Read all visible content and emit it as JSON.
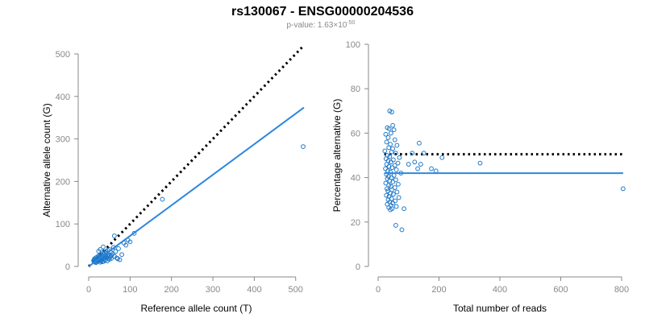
{
  "header": {
    "title": "rs130067 - ENSG00000204536",
    "pvalue_prefix": "p-value: 1.63×10",
    "pvalue_exponent": "-50"
  },
  "colors": {
    "points": "#1f78c8",
    "fit": "#2b87e0",
    "reference": "#000000"
  },
  "chart_data": [
    {
      "type": "scatter",
      "xlabel": "Reference allele count (T)",
      "ylabel": "Alternative allele count (G)",
      "xlim": [
        0,
        520
      ],
      "ylim": [
        0,
        500
      ],
      "xticks": [
        0,
        100,
        200,
        300,
        400,
        500
      ],
      "yticks": [
        0,
        100,
        200,
        300,
        400,
        500
      ],
      "reference_line": {
        "style": "dotted",
        "x": [
          0,
          520
        ],
        "y": [
          0,
          520
        ]
      },
      "fit_line": {
        "x": [
          0,
          520
        ],
        "y": [
          0,
          374
        ]
      },
      "points": [
        [
          12,
          14
        ],
        [
          13,
          12
        ],
        [
          14,
          18
        ],
        [
          15,
          16
        ],
        [
          16,
          11
        ],
        [
          17,
          20
        ],
        [
          18,
          15
        ],
        [
          19,
          13
        ],
        [
          20,
          22
        ],
        [
          21,
          17
        ],
        [
          22,
          19
        ],
        [
          23,
          14
        ],
        [
          24,
          25
        ],
        [
          25,
          21
        ],
        [
          26,
          16
        ],
        [
          27,
          24
        ],
        [
          28,
          18
        ],
        [
          29,
          28
        ],
        [
          30,
          23
        ],
        [
          31,
          15
        ],
        [
          32,
          26
        ],
        [
          33,
          19
        ],
        [
          34,
          30
        ],
        [
          35,
          22
        ],
        [
          36,
          17
        ],
        [
          37,
          29
        ],
        [
          38,
          24
        ],
        [
          39,
          33
        ],
        [
          40,
          20
        ],
        [
          41,
          27
        ],
        [
          42,
          35
        ],
        [
          43,
          21
        ],
        [
          44,
          31
        ],
        [
          45,
          25
        ],
        [
          46,
          38
        ],
        [
          47,
          18
        ],
        [
          48,
          28
        ],
        [
          50,
          40
        ],
        [
          52,
          22
        ],
        [
          54,
          33
        ],
        [
          55,
          26
        ],
        [
          58,
          30
        ],
        [
          60,
          45
        ],
        [
          62,
          24
        ],
        [
          65,
          35
        ],
        [
          68,
          20
        ],
        [
          70,
          18
        ],
        [
          72,
          42
        ],
        [
          75,
          16
        ],
        [
          80,
          28
        ],
        [
          85,
          55
        ],
        [
          90,
          50
        ],
        [
          95,
          62
        ],
        [
          100,
          58
        ],
        [
          110,
          78
        ],
        [
          15,
          10
        ],
        [
          18,
          9
        ],
        [
          22,
          12
        ],
        [
          25,
          14
        ],
        [
          28,
          10
        ],
        [
          30,
          13
        ],
        [
          33,
          11
        ],
        [
          36,
          12
        ],
        [
          40,
          15
        ],
        [
          45,
          13
        ],
        [
          50,
          17
        ],
        [
          55,
          19
        ],
        [
          24,
          36
        ],
        [
          28,
          40
        ],
        [
          35,
          46
        ],
        [
          62,
          72
        ],
        [
          178,
          158
        ],
        [
          518,
          282
        ]
      ]
    },
    {
      "type": "scatter",
      "xlabel": "Total number of reads",
      "ylabel": "Percentage alternative (G)",
      "xlim": [
        0,
        800
      ],
      "ylim": [
        0,
        100
      ],
      "xticks": [
        0,
        200,
        400,
        600,
        800
      ],
      "yticks": [
        0,
        20,
        40,
        60,
        80,
        100
      ],
      "reference_line": {
        "style": "dotted",
        "y": 50.5,
        "x": [
          20,
          805
        ]
      },
      "fit_line": {
        "y": 42,
        "x": [
          20,
          805
        ]
      },
      "points": [
        [
          38,
          70
        ],
        [
          45,
          69.5
        ],
        [
          48,
          63.5
        ],
        [
          30,
          62.5
        ],
        [
          36,
          62
        ],
        [
          52,
          61.5
        ],
        [
          42,
          60
        ],
        [
          25,
          59.5
        ],
        [
          33,
          58
        ],
        [
          55,
          57
        ],
        [
          28,
          56
        ],
        [
          40,
          55
        ],
        [
          62,
          54.5
        ],
        [
          35,
          53.5
        ],
        [
          48,
          53
        ],
        [
          22,
          52
        ],
        [
          44,
          51.5
        ],
        [
          58,
          51
        ],
        [
          30,
          50
        ],
        [
          38,
          49.5
        ],
        [
          70,
          49
        ],
        [
          26,
          48.5
        ],
        [
          50,
          48
        ],
        [
          33,
          47.5
        ],
        [
          42,
          47
        ],
        [
          65,
          46.5
        ],
        [
          28,
          46
        ],
        [
          55,
          45.5
        ],
        [
          36,
          45
        ],
        [
          46,
          44.5
        ],
        [
          24,
          44
        ],
        [
          60,
          43.5
        ],
        [
          32,
          43
        ],
        [
          40,
          42.5
        ],
        [
          75,
          42
        ],
        [
          27,
          41.5
        ],
        [
          52,
          41
        ],
        [
          34,
          40.5
        ],
        [
          44,
          40
        ],
        [
          30,
          39.5
        ],
        [
          58,
          39
        ],
        [
          38,
          38.5
        ],
        [
          48,
          38
        ],
        [
          25,
          37.5
        ],
        [
          66,
          37
        ],
        [
          35,
          36.5
        ],
        [
          42,
          36
        ],
        [
          55,
          35.5
        ],
        [
          29,
          35
        ],
        [
          45,
          34.5
        ],
        [
          32,
          34
        ],
        [
          62,
          33.5
        ],
        [
          40,
          33
        ],
        [
          50,
          32.5
        ],
        [
          27,
          32
        ],
        [
          36,
          31.5
        ],
        [
          68,
          31
        ],
        [
          44,
          30.5
        ],
        [
          33,
          30
        ],
        [
          56,
          29.5
        ],
        [
          38,
          29
        ],
        [
          48,
          28.5
        ],
        [
          30,
          28
        ],
        [
          42,
          27.5
        ],
        [
          60,
          27
        ],
        [
          35,
          26.5
        ],
        [
          46,
          26
        ],
        [
          40,
          25.5
        ],
        [
          85,
          26
        ],
        [
          78,
          16.5
        ],
        [
          58,
          18.5
        ],
        [
          100,
          46
        ],
        [
          112,
          51
        ],
        [
          120,
          47
        ],
        [
          130,
          44
        ],
        [
          135,
          55.5
        ],
        [
          140,
          46
        ],
        [
          150,
          51
        ],
        [
          175,
          44
        ],
        [
          190,
          43
        ],
        [
          210,
          49
        ],
        [
          335,
          46.5
        ],
        [
          805,
          35
        ]
      ]
    }
  ]
}
